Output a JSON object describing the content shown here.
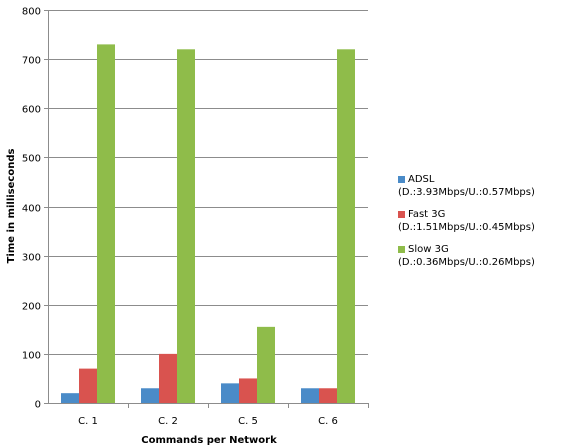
{
  "chart_data": {
    "type": "bar",
    "title": "",
    "xlabel": "Commands per Network",
    "ylabel": "Time in milliseconds",
    "ylim": [
      0,
      800
    ],
    "yticks": [
      0,
      100,
      200,
      300,
      400,
      500,
      600,
      700,
      800
    ],
    "grid": true,
    "legend_position": "right",
    "categories": [
      "C. 1",
      "C. 2",
      "C. 5",
      "C. 6"
    ],
    "series": [
      {
        "name": "ADSL",
        "detail": "(D.:3.93Mbps/U.:0.57Mbps)",
        "color": "#4a8bc8",
        "values": [
          20,
          30,
          40,
          30
        ]
      },
      {
        "name": "Fast 3G",
        "detail": "(D.:1.51Mbps/U.:0.45Mbps)",
        "color": "#d9534f",
        "values": [
          70,
          100,
          50,
          30
        ]
      },
      {
        "name": "Slow 3G",
        "detail": "(D.:0.36Mbps/U.:0.26Mbps)",
        "color": "#8fbc4a",
        "values": [
          730,
          720,
          155,
          720
        ]
      }
    ]
  }
}
